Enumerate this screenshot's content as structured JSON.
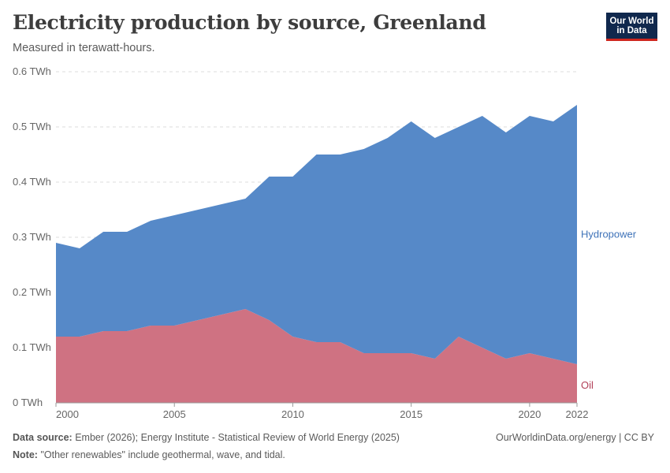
{
  "header": {
    "title": "Electricity production by source, Greenland",
    "subtitle": "Measured in terawatt-hours."
  },
  "logo": {
    "line1": "Our World",
    "line2": "in Data"
  },
  "footer": {
    "source_label": "Data source:",
    "source_text": "Ember (2026); Energy Institute - Statistical Review of World Energy (2025)",
    "note_label": "Note:",
    "note_text": "\"Other renewables\" include geothermal, wave, and tidal.",
    "right_text": "OurWorldinData.org/energy | CC BY"
  },
  "colors": {
    "hydropower": "#5689c8",
    "oil": "#cf7282",
    "grid": "#dddddd",
    "axis": "#999999"
  },
  "chart_data": {
    "type": "area",
    "stacked": true,
    "x": [
      2000,
      2001,
      2002,
      2003,
      2004,
      2005,
      2006,
      2007,
      2008,
      2009,
      2010,
      2011,
      2012,
      2013,
      2014,
      2015,
      2016,
      2017,
      2018,
      2019,
      2020,
      2021,
      2022
    ],
    "series": [
      {
        "name": "Oil",
        "color": "#cf7282",
        "values": [
          0.12,
          0.12,
          0.13,
          0.13,
          0.14,
          0.14,
          0.15,
          0.16,
          0.17,
          0.15,
          0.12,
          0.11,
          0.11,
          0.09,
          0.09,
          0.09,
          0.08,
          0.12,
          0.1,
          0.08,
          0.09,
          0.08,
          0.07
        ]
      },
      {
        "name": "Hydropower",
        "color": "#5689c8",
        "values": [
          0.17,
          0.16,
          0.18,
          0.18,
          0.19,
          0.2,
          0.2,
          0.2,
          0.2,
          0.26,
          0.29,
          0.34,
          0.34,
          0.37,
          0.39,
          0.42,
          0.4,
          0.38,
          0.42,
          0.41,
          0.43,
          0.43,
          0.47
        ]
      }
    ],
    "ylim": [
      0,
      0.6
    ],
    "yticks": [
      0,
      0.1,
      0.2,
      0.3,
      0.4,
      0.5,
      0.6
    ],
    "ytick_labels": [
      "0 TWh",
      "0.1 TWh",
      "0.2 TWh",
      "0.3 TWh",
      "0.4 TWh",
      "0.5 TWh",
      "0.6 TWh"
    ],
    "xticks": [
      2000,
      2005,
      2010,
      2015,
      2020,
      2022
    ],
    "xtick_labels": [
      "2000",
      "2005",
      "2010",
      "2015",
      "2020",
      "2022"
    ],
    "xlabel": "",
    "ylabel": "",
    "grid": true,
    "legend": "right-inline"
  }
}
